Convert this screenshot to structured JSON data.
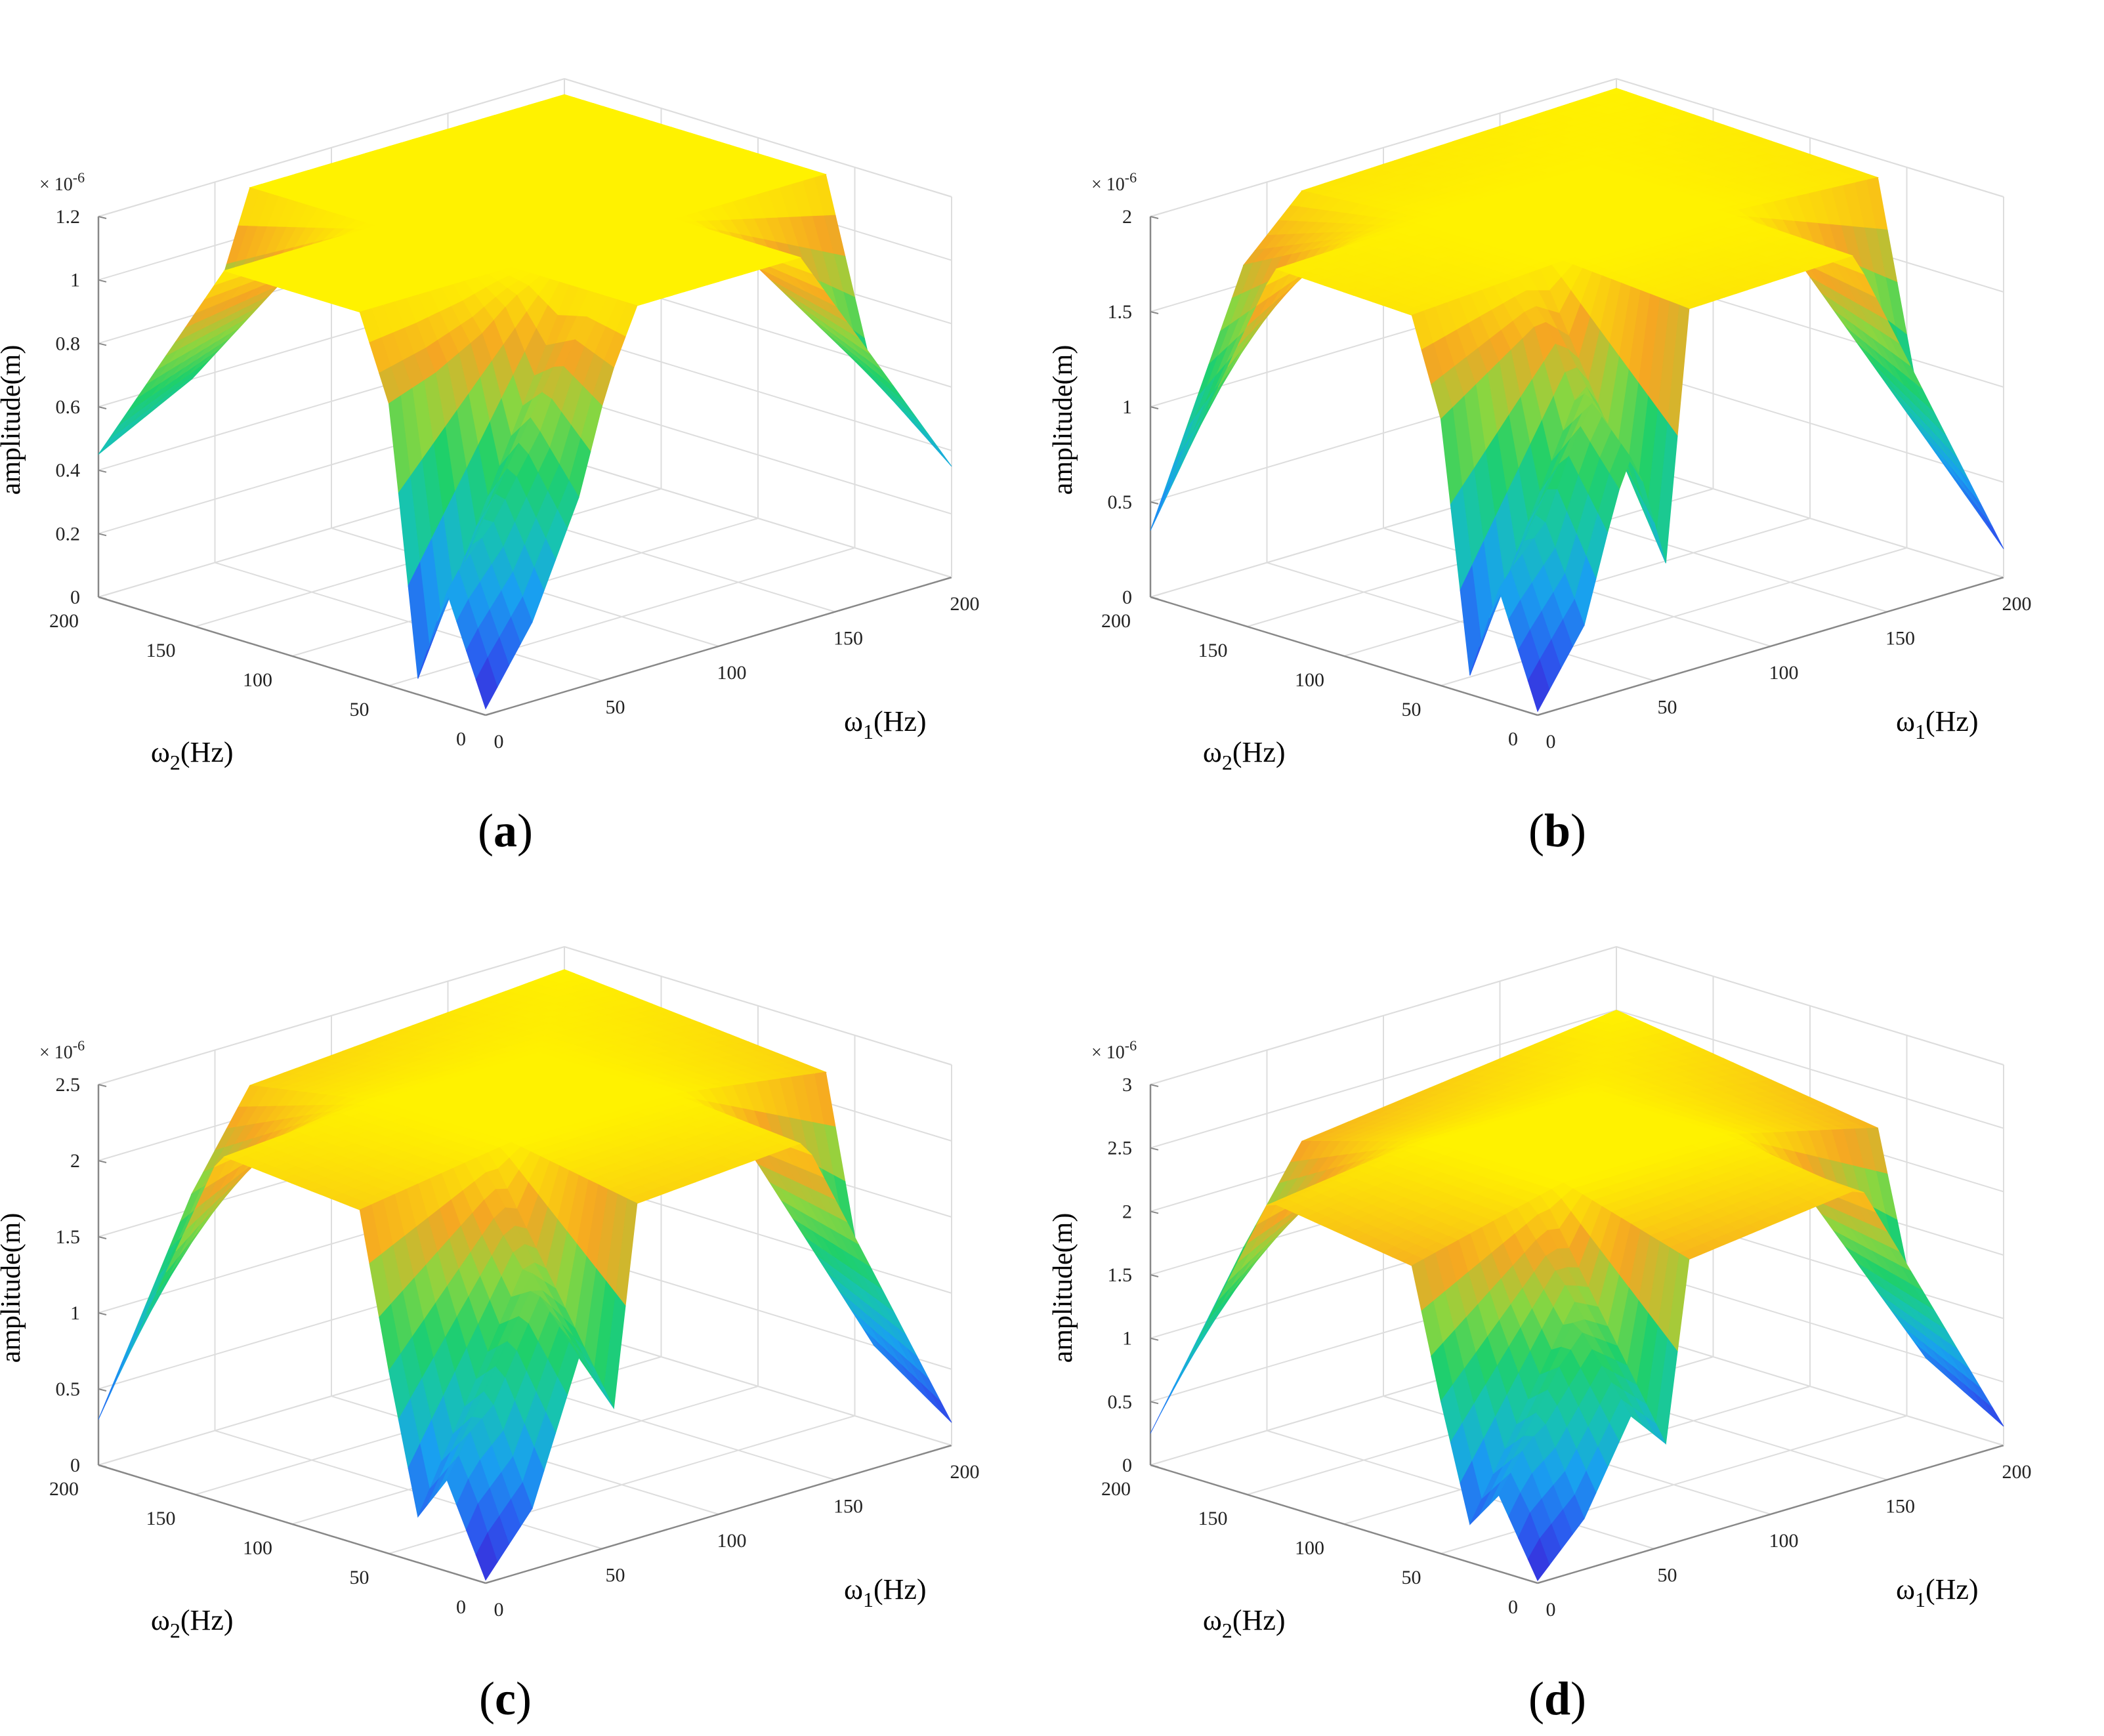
{
  "figure": {
    "panels_count": 4
  },
  "chart_data": [
    {
      "type": "surface",
      "panel_label": "a",
      "z_scale_label": "× 10",
      "z_scale_exponent": "-6",
      "zlabel": "amplitude(m)",
      "x1label_symbol": "ω",
      "x1label_sub": "1",
      "x1label_unit": "(Hz)",
      "x2label_symbol": "ω",
      "x2label_sub": "2",
      "x2label_unit": "(Hz)",
      "x1_ticks": [
        "0",
        "50",
        "100",
        "150",
        "200"
      ],
      "x2_ticks": [
        "0",
        "50",
        "100",
        "150",
        "200"
      ],
      "z_ticks": [
        "0",
        "0.2",
        "0.4",
        "0.6",
        "0.8",
        "1",
        "1.2"
      ],
      "zlim": [
        0,
        1.2
      ],
      "plateau": 1.15,
      "surface": {
        "edge_w2_0": [
          [
            0,
            0.02
          ],
          [
            20,
            0.25
          ],
          [
            40,
            0.6
          ],
          [
            55,
            1.0
          ],
          [
            65,
            1.15
          ],
          [
            200,
            1.15
          ]
        ],
        "edge_w1_0": [
          [
            0,
            0.02
          ],
          [
            20,
            0.35
          ],
          [
            35,
            0.05
          ],
          [
            50,
            0.9
          ],
          [
            65,
            1.15
          ],
          [
            200,
            1.15
          ]
        ],
        "edge_w2_200": [
          [
            0,
            0.45
          ],
          [
            40,
            0.6
          ],
          [
            65,
            1.15
          ],
          [
            200,
            1.15
          ]
        ],
        "edge_w1_200": [
          [
            0,
            0.35
          ],
          [
            40,
            0.55
          ],
          [
            65,
            1.15
          ],
          [
            200,
            1.15
          ]
        ]
      }
    },
    {
      "type": "surface",
      "panel_label": "b",
      "z_scale_label": "× 10",
      "z_scale_exponent": "-6",
      "zlabel": "amplitude(m)",
      "x1label_symbol": "ω",
      "x1label_sub": "1",
      "x1label_unit": "(Hz)",
      "x2label_symbol": "ω",
      "x2label_sub": "2",
      "x2label_unit": "(Hz)",
      "x1_ticks": [
        "0",
        "50",
        "100",
        "150",
        "200"
      ],
      "x2_ticks": [
        "0",
        "50",
        "100",
        "150",
        "200"
      ],
      "z_ticks": [
        "0",
        "0.5",
        "1",
        "1.5",
        "2"
      ],
      "zlim": [
        0,
        2
      ],
      "plateau": 1.95,
      "surface": {
        "edge_w2_0": [
          [
            0,
            0.02
          ],
          [
            20,
            0.4
          ],
          [
            40,
            1.3
          ],
          [
            55,
            0.6
          ],
          [
            65,
            1.9
          ],
          [
            200,
            1.95
          ]
        ],
        "edge_w1_0": [
          [
            0,
            0.02
          ],
          [
            20,
            0.6
          ],
          [
            35,
            0.1
          ],
          [
            50,
            1.4
          ],
          [
            65,
            1.9
          ],
          [
            200,
            1.95
          ]
        ],
        "edge_w2_200": [
          [
            0,
            0.35
          ],
          [
            40,
            1.6
          ],
          [
            65,
            1.9
          ],
          [
            200,
            1.95
          ]
        ],
        "edge_w1_200": [
          [
            0,
            0.15
          ],
          [
            40,
            0.6
          ],
          [
            65,
            1.9
          ],
          [
            200,
            1.95
          ]
        ]
      }
    },
    {
      "type": "surface",
      "panel_label": "c",
      "z_scale_label": "× 10",
      "z_scale_exponent": "-6",
      "zlabel": "amplitude(m)",
      "x1label_symbol": "ω",
      "x1label_sub": "1",
      "x1label_unit": "(Hz)",
      "x2label_symbol": "ω",
      "x2label_sub": "2",
      "x2label_unit": "(Hz)",
      "x1_ticks": [
        "0",
        "50",
        "100",
        "150",
        "200"
      ],
      "x2_ticks": [
        "0",
        "50",
        "100",
        "150",
        "200"
      ],
      "z_ticks": [
        "0",
        "0.5",
        "1",
        "1.5",
        "2",
        "2.5"
      ],
      "zlim": [
        0,
        2.5
      ],
      "plateau": 2.35,
      "surface": {
        "edge_w2_0": [
          [
            0,
            0.02
          ],
          [
            20,
            0.4
          ],
          [
            40,
            1.3
          ],
          [
            55,
            0.9
          ],
          [
            65,
            2.2
          ],
          [
            200,
            2.35
          ]
        ],
        "edge_w1_0": [
          [
            0,
            0.02
          ],
          [
            20,
            0.6
          ],
          [
            35,
            0.3
          ],
          [
            50,
            1.2
          ],
          [
            65,
            2.2
          ],
          [
            200,
            2.35
          ]
        ],
        "edge_w2_200": [
          [
            0,
            0.3
          ],
          [
            40,
            1.6
          ],
          [
            65,
            2.2
          ],
          [
            200,
            2.35
          ]
        ],
        "edge_w1_200": [
          [
            0,
            0.15
          ],
          [
            40,
            0.5
          ],
          [
            65,
            2.2
          ],
          [
            200,
            2.35
          ]
        ]
      }
    },
    {
      "type": "surface",
      "panel_label": "d",
      "z_scale_label": "× 10",
      "z_scale_exponent": "-6",
      "zlabel": "amplitude(m)",
      "x1label_symbol": "ω",
      "x1label_sub": "1",
      "x1label_unit": "(Hz)",
      "x2label_symbol": "ω",
      "x2label_sub": "2",
      "x2label_unit": "(Hz)",
      "x1_ticks": [
        "0",
        "50",
        "100",
        "150",
        "200"
      ],
      "x2_ticks": [
        "0",
        "50",
        "100",
        "150",
        "200"
      ],
      "z_ticks": [
        "0",
        "0.5",
        "1",
        "1.5",
        "2",
        "2.5",
        "3"
      ],
      "zlim": [
        0,
        3
      ],
      "plateau": 2.5,
      "surface": {
        "edge_w2_0": [
          [
            0,
            0.02
          ],
          [
            20,
            0.4
          ],
          [
            40,
            1.1
          ],
          [
            55,
            0.8
          ],
          [
            65,
            2.2
          ],
          [
            200,
            2.5
          ]
        ],
        "edge_w1_0": [
          [
            0,
            0.02
          ],
          [
            20,
            0.6
          ],
          [
            35,
            0.3
          ],
          [
            50,
            1.2
          ],
          [
            65,
            2.2
          ],
          [
            200,
            2.5
          ]
        ],
        "edge_w2_200": [
          [
            0,
            0.25
          ],
          [
            40,
            1.5
          ],
          [
            65,
            2.2
          ],
          [
            200,
            2.5
          ]
        ],
        "edge_w1_200": [
          [
            0,
            0.15
          ],
          [
            40,
            0.5
          ],
          [
            65,
            2.2
          ],
          [
            200,
            2.5
          ]
        ]
      }
    }
  ],
  "colors": {
    "axis": "#888888",
    "grid": "#dddddd",
    "colormap": [
      "#3b1fd6",
      "#2a5ff0",
      "#19a0f0",
      "#17c3b2",
      "#1fd06a",
      "#8bd640",
      "#f5a623",
      "#fff200"
    ]
  }
}
